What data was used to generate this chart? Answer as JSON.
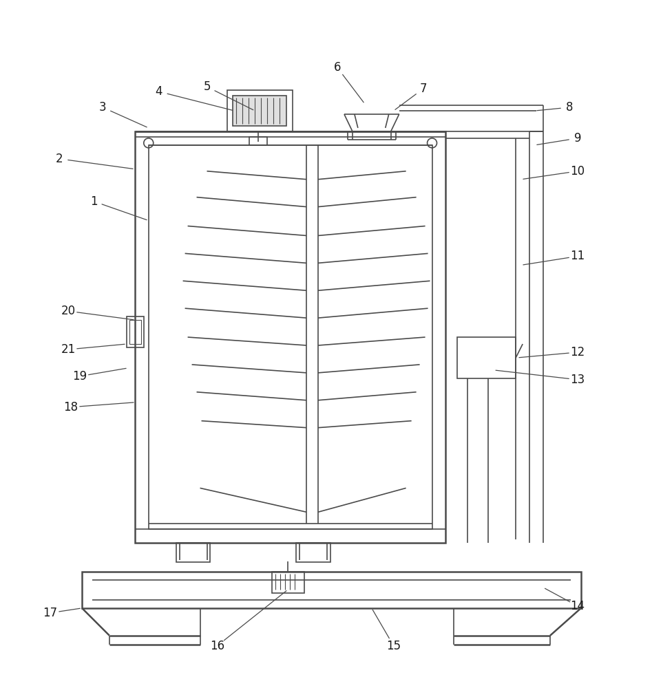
{
  "bg_color": "#ffffff",
  "line_color": "#4a4a4a",
  "lw": 1.2,
  "lw2": 1.8,
  "lw3": 2.5
}
